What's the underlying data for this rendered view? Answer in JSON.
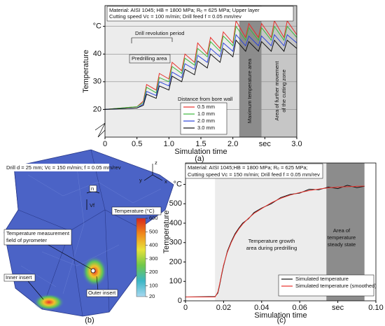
{
  "chart_data": [
    {
      "type": "line",
      "x_label": "Simulation time",
      "y_label": "Temperature",
      "xlim": [
        0,
        3.0
      ],
      "ylim": [
        10,
        57.5
      ],
      "xticks": [
        0,
        0.5,
        {
          "value": 1,
          "label": "1.0"
        },
        1.5,
        {
          "value": 2,
          "label": "2.0"
        },
        {
          "value": 2.5,
          "label": "sec"
        },
        {
          "value": 3,
          "label": "3.0"
        }
      ],
      "yticks": [
        20,
        30,
        40,
        {
          "value": 50,
          "label": "°C"
        }
      ],
      "grid": true,
      "regions": [
        {
          "x": [
            0,
            2.1
          ],
          "color": "#ececec"
        },
        {
          "x": [
            2.1,
            2.45
          ],
          "color": "#8c8c8c"
        },
        {
          "x": [
            2.45,
            3.0
          ],
          "color": "#c6c6c6"
        }
      ],
      "legend_title": "Distance from bore wall",
      "x": [
        0,
        0.5,
        0.6,
        0.65,
        0.8,
        0.85,
        1.0,
        1.05,
        1.2,
        1.25,
        1.4,
        1.45,
        1.6,
        1.65,
        1.8,
        1.85,
        2.0,
        2.05,
        2.2,
        2.25,
        2.4,
        2.45,
        2.6,
        2.65,
        2.8,
        2.85,
        3.0
      ],
      "series": [
        {
          "name": "0.5 mm",
          "color": "#e8302a",
          "values": [
            20,
            21,
            23,
            29,
            27,
            33,
            31,
            37,
            34,
            40,
            37,
            44,
            40,
            46,
            42,
            48,
            44,
            52,
            46,
            51,
            46,
            51,
            46,
            52,
            46,
            52,
            47
          ]
        },
        {
          "name": "1.0 mm",
          "color": "#3cb83c",
          "values": [
            20,
            21,
            22.5,
            28,
            26,
            31.5,
            30,
            35.5,
            33,
            38.5,
            36,
            42,
            39,
            44.5,
            41,
            46.5,
            43,
            50,
            45,
            49.5,
            45,
            49.5,
            45,
            50,
            45,
            50,
            46
          ]
        },
        {
          "name": "2.0 mm",
          "color": "#2c44d8",
          "values": [
            20,
            20.5,
            22,
            26.5,
            25,
            30,
            28.5,
            33.5,
            31.5,
            36.5,
            34.5,
            39.5,
            37,
            42,
            39,
            44,
            41,
            47,
            43,
            46.5,
            43,
            46.5,
            43,
            47,
            43,
            47,
            44
          ]
        },
        {
          "name": "3.0 mm",
          "color": "#111111",
          "values": [
            20,
            20.5,
            21.5,
            25.5,
            24,
            28.5,
            27,
            32,
            30,
            34.5,
            32.5,
            37.5,
            35,
            40,
            37,
            42,
            39,
            45,
            41,
            44.5,
            41,
            44.5,
            41,
            45,
            41,
            45,
            42
          ]
        }
      ],
      "annotations": [
        "Material: AISI 1045; HB = 1800 MPa; Rₑ = 625 MPa; Upper layer",
        "Cutting speed Vc = 100 m/min; Drill feed f = 0.05 mm/rev",
        "Drill revolution period",
        "Predrilling area",
        "Maximum temperature area",
        "Area of further movement",
        "of the cutting zone"
      ]
    },
    {
      "type": "line",
      "x_label": "Simulation time",
      "y_label": "Temperature",
      "xlim": [
        0,
        0.1
      ],
      "ylim": [
        0,
        710
      ],
      "xticks": [
        0,
        0.02,
        0.04,
        0.06,
        {
          "value": 0.08,
          "label": "sec"
        },
        {
          "value": 0.1,
          "label": "0.10"
        }
      ],
      "yticks": [
        0,
        100,
        200,
        300,
        400,
        500,
        {
          "value": 600,
          "label": "°C"
        }
      ],
      "grid": false,
      "regions": [
        {
          "x": [
            0.0155,
            0.074
          ],
          "color": "#ececec"
        },
        {
          "x": [
            0.074,
            0.094
          ],
          "color": "#8c8c8c"
        }
      ],
      "x": [
        0,
        0.0155,
        0.017,
        0.018,
        0.019,
        0.02,
        0.022,
        0.024,
        0.026,
        0.028,
        0.03,
        0.033,
        0.036,
        0.04,
        0.045,
        0.05,
        0.055,
        0.06,
        0.065,
        0.07,
        0.075,
        0.08,
        0.085,
        0.09,
        0.094
      ],
      "series": [
        {
          "name": "Simulated temperature",
          "color": "#111111",
          "values": [
            20,
            22,
            40,
            85,
            135,
            180,
            255,
            305,
            345,
            375,
            400,
            422,
            455,
            478,
            500,
            532,
            548,
            555,
            575,
            572,
            586,
            578,
            595,
            583,
            590
          ]
        },
        {
          "name": "Simulated temperature (smoothed)",
          "color": "#e8302a",
          "values": [
            20,
            20,
            45,
            90,
            140,
            185,
            250,
            300,
            340,
            370,
            395,
            425,
            450,
            475,
            505,
            528,
            545,
            558,
            568,
            576,
            582,
            586,
            588,
            590,
            591
          ]
        }
      ],
      "annotations": [
        "Material: AISI 1045;HB = 1800 MPa; Rₑ = 625 MPa;",
        "Cutting speed Vc = 150 m/min; Drill feed f = 0.05 mm/rev",
        "Temperature growth",
        "area during predrilling",
        "Area of",
        "temperature",
        "steady state"
      ]
    }
  ],
  "fem_view": {
    "caption": "Drill d = 25 mm; Vc = 150 m/min; f = 0.05 mm/rev",
    "rotation": "n",
    "feed": "Vf",
    "colorbar_title": "Temperature (°C)",
    "colorbar_range": [
      20,
      600
    ],
    "colorbar_ticks": [
      600,
      500,
      400,
      300,
      200,
      100,
      20
    ],
    "labels": [
      "Temperature measurement",
      "field of pyrometer",
      "Inner insert",
      "Outer insert"
    ],
    "axes": [
      "x",
      "y",
      "z"
    ]
  },
  "panel_labels": [
    "(a)",
    "(b)",
    "(c)"
  ]
}
